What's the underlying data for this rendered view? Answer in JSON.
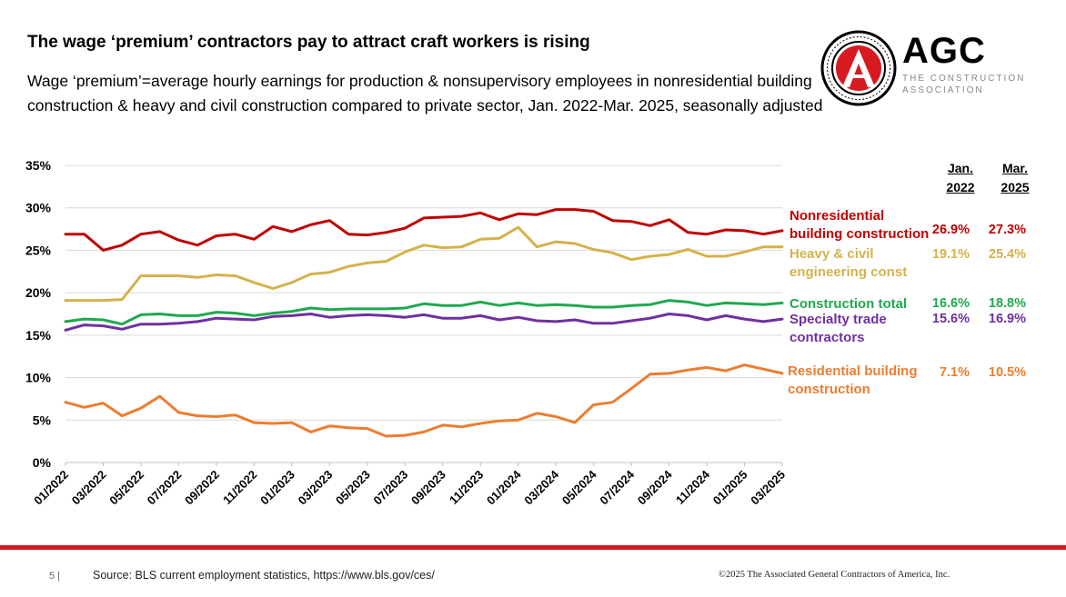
{
  "title": "The wage ‘premium’ contractors pay to attract craft workers is rising",
  "subtitle": "Wage ‘premium’=average hourly earnings for production & nonsupervisory employees in nonresidential building construction & heavy and civil construction compared to private sector, Jan. 2022-Mar. 2025, seasonally adjusted",
  "logo": {
    "name": "AGC",
    "tagline_line1": "THE CONSTRUCTION",
    "tagline_line2": "ASSOCIATION"
  },
  "table_headers": {
    "col1_line1": "Jan.",
    "col1_line2": "2022",
    "col2_line1": "Mar.",
    "col2_line2": "2025"
  },
  "labels": [
    {
      "line1": "Nonresidential",
      "line2": "building construction",
      "jan": "26.9%",
      "mar": "27.3%"
    },
    {
      "line1": "Heavy & civil",
      "line2": "engineering const",
      "jan": "19.1%",
      "mar": "25.4%"
    },
    {
      "line1": "Construction total",
      "line2": "",
      "jan": "16.6%",
      "mar": "18.8%"
    },
    {
      "line1": "Specialty trade",
      "line2": "contractors",
      "jan": "15.6%",
      "mar": "16.9%"
    },
    {
      "line1": "Residential building",
      "line2": "construction",
      "jan": "7.1%",
      "mar": "10.5%"
    }
  ],
  "footer": {
    "page_number": "5 |",
    "source": "Source: BLS current employment statistics, https://www.bls.gov/ces/",
    "copyright": "©2025 The Associated General Contractors of America, Inc."
  },
  "colors": {
    "nonres": "#c00000",
    "heavy": "#d4b24c",
    "total": "#1fa94f",
    "specialty": "#7030a0",
    "residential": "#ed7d31",
    "grid": "#d9d9d9",
    "accent": "#d71920"
  },
  "chart_data": {
    "type": "line",
    "title": "The wage ‘premium’ contractors pay to attract craft workers is rising",
    "xlabel": "",
    "ylabel": "",
    "ylim": [
      0,
      35
    ],
    "yticks": [
      "0%",
      "5%",
      "10%",
      "15%",
      "20%",
      "25%",
      "30%",
      "35%"
    ],
    "grid": true,
    "x": [
      "01/2022",
      "02/2022",
      "03/2022",
      "04/2022",
      "05/2022",
      "06/2022",
      "07/2022",
      "08/2022",
      "09/2022",
      "10/2022",
      "11/2022",
      "12/2022",
      "01/2023",
      "02/2023",
      "03/2023",
      "04/2023",
      "05/2023",
      "06/2023",
      "07/2023",
      "08/2023",
      "09/2023",
      "10/2023",
      "11/2023",
      "12/2023",
      "01/2024",
      "02/2024",
      "03/2024",
      "04/2024",
      "05/2024",
      "06/2024",
      "07/2024",
      "08/2024",
      "09/2024",
      "10/2024",
      "11/2024",
      "12/2024",
      "01/2025",
      "02/2025",
      "03/2025"
    ],
    "xtick_labels": [
      "01/2022",
      "03/2022",
      "05/2022",
      "07/2022",
      "09/2022",
      "11/2022",
      "01/2023",
      "03/2023",
      "05/2023",
      "07/2023",
      "09/2023",
      "11/2023",
      "01/2024",
      "03/2024",
      "05/2024",
      "07/2024",
      "09/2024",
      "11/2024",
      "01/2025",
      "03/2025"
    ],
    "series": [
      {
        "name": "Nonresidential building construction",
        "color": "#c00000",
        "values": [
          26.9,
          26.9,
          25.0,
          25.6,
          26.9,
          27.2,
          26.2,
          25.6,
          26.7,
          26.9,
          26.3,
          27.8,
          27.2,
          28.0,
          28.5,
          26.9,
          26.8,
          27.1,
          27.6,
          28.8,
          28.9,
          29.0,
          29.4,
          28.6,
          29.3,
          29.2,
          29.8,
          29.8,
          29.6,
          28.5,
          28.4,
          27.9,
          28.6,
          27.1,
          26.9,
          27.4,
          27.3,
          26.9,
          27.3
        ]
      },
      {
        "name": "Heavy & civil engineering const",
        "color": "#d4b24c",
        "values": [
          19.1,
          19.1,
          19.1,
          19.2,
          22.0,
          22.0,
          22.0,
          21.8,
          22.1,
          22.0,
          21.2,
          20.5,
          21.2,
          22.2,
          22.4,
          23.1,
          23.5,
          23.7,
          24.8,
          25.6,
          25.3,
          25.4,
          26.3,
          26.4,
          27.7,
          25.4,
          26.0,
          25.8,
          25.1,
          24.7,
          23.9,
          24.3,
          24.5,
          25.1,
          24.3,
          24.3,
          24.8,
          25.4,
          25.4
        ]
      },
      {
        "name": "Construction total",
        "color": "#1fa94f",
        "values": [
          16.6,
          16.9,
          16.8,
          16.3,
          17.4,
          17.5,
          17.3,
          17.3,
          17.7,
          17.6,
          17.3,
          17.6,
          17.8,
          18.2,
          18.0,
          18.1,
          18.1,
          18.1,
          18.2,
          18.7,
          18.5,
          18.5,
          18.9,
          18.5,
          18.8,
          18.5,
          18.6,
          18.5,
          18.3,
          18.3,
          18.5,
          18.6,
          19.1,
          18.9,
          18.5,
          18.8,
          18.7,
          18.6,
          18.8
        ]
      },
      {
        "name": "Specialty trade contractors",
        "color": "#7030a0",
        "values": [
          15.6,
          16.2,
          16.1,
          15.7,
          16.3,
          16.3,
          16.4,
          16.6,
          17.0,
          16.9,
          16.8,
          17.2,
          17.3,
          17.5,
          17.1,
          17.3,
          17.4,
          17.3,
          17.1,
          17.4,
          17.0,
          17.0,
          17.3,
          16.8,
          17.1,
          16.7,
          16.6,
          16.8,
          16.4,
          16.4,
          16.7,
          17.0,
          17.5,
          17.3,
          16.8,
          17.3,
          16.9,
          16.6,
          16.9
        ]
      },
      {
        "name": "Residential building construction",
        "color": "#ed7d31",
        "values": [
          7.1,
          6.5,
          7.0,
          5.5,
          6.4,
          7.8,
          5.9,
          5.5,
          5.4,
          5.6,
          4.7,
          4.6,
          4.7,
          3.6,
          4.3,
          4.1,
          4.0,
          3.1,
          3.2,
          3.6,
          4.4,
          4.2,
          4.6,
          4.9,
          5.0,
          5.8,
          5.4,
          4.7,
          6.8,
          7.1,
          8.7,
          10.4,
          10.5,
          10.9,
          11.2,
          10.8,
          11.5,
          11.0,
          10.5
        ]
      }
    ]
  }
}
